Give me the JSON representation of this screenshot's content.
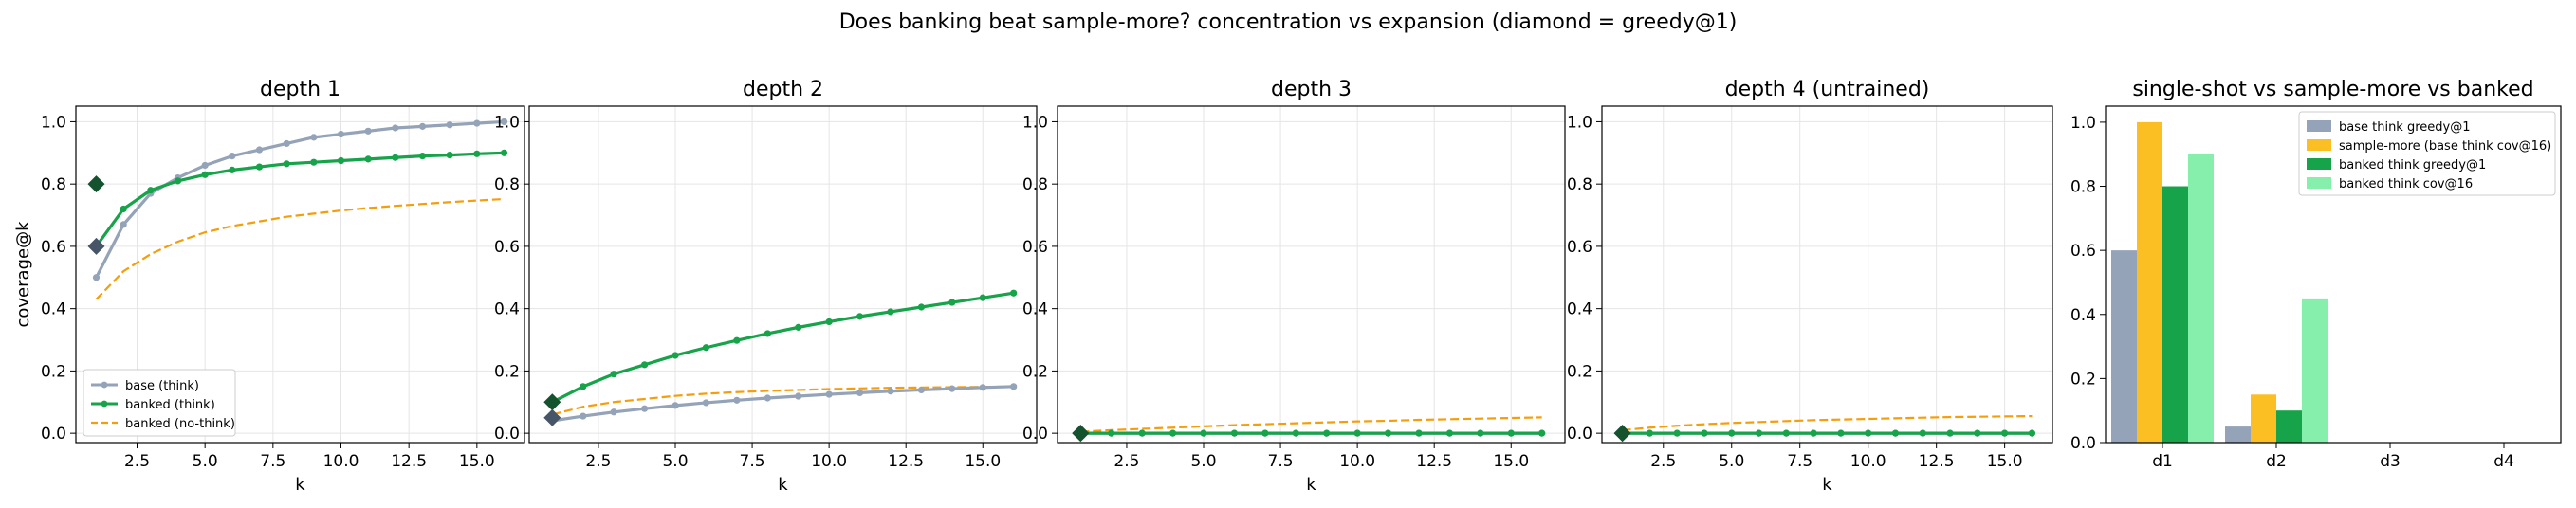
{
  "figure": {
    "suptitle": "Does banking beat sample-more? concentration vs expansion (diamond = greedy@1)"
  },
  "colors": {
    "base": "#94a3b8",
    "banked": "#16a34a",
    "nothink": "#f59e0b",
    "diamond_base": "#475569",
    "diamond_banked": "#14532d",
    "bar_base": "#94a3b8",
    "bar_sample": "#fbbf24",
    "bar_banked_g": "#16a34a",
    "bar_banked_c": "#86efac"
  },
  "chart_data": [
    {
      "type": "line",
      "title": "depth 1",
      "xlabel": "k",
      "ylabel": "coverage@k",
      "xlim": [
        0.25,
        16.75
      ],
      "ylim": [
        -0.03,
        1.05
      ],
      "xticks": [
        2.5,
        5.0,
        7.5,
        10.0,
        12.5,
        15.0
      ],
      "xtick_labels": [
        "2.5",
        "5.0",
        "7.5",
        "10.0",
        "12.5",
        "15.0"
      ],
      "yticks": [
        0.0,
        0.2,
        0.4,
        0.6,
        0.8,
        1.0
      ],
      "ytick_labels": [
        "0.0",
        "0.2",
        "0.4",
        "0.6",
        "0.8",
        "1.0"
      ],
      "grid": true,
      "legend": "lower-left",
      "x": [
        1,
        2,
        3,
        4,
        5,
        6,
        7,
        8,
        9,
        10,
        11,
        12,
        13,
        14,
        15,
        16
      ],
      "series": [
        {
          "key": "base",
          "name": "base (think)",
          "style": "solid-marker",
          "values": [
            0.5,
            0.67,
            0.77,
            0.82,
            0.86,
            0.89,
            0.91,
            0.93,
            0.95,
            0.96,
            0.97,
            0.98,
            0.985,
            0.99,
            0.995,
            1.0
          ]
        },
        {
          "key": "banked",
          "name": "banked (think)",
          "style": "solid-marker",
          "values": [
            0.6,
            0.72,
            0.78,
            0.81,
            0.83,
            0.845,
            0.855,
            0.865,
            0.87,
            0.875,
            0.88,
            0.885,
            0.89,
            0.893,
            0.897,
            0.9
          ]
        },
        {
          "key": "nothink",
          "name": "banked (no-think)",
          "style": "dashed",
          "values": [
            0.43,
            0.52,
            0.575,
            0.615,
            0.645,
            0.665,
            0.68,
            0.695,
            0.705,
            0.715,
            0.723,
            0.73,
            0.736,
            0.742,
            0.747,
            0.752
          ]
        }
      ],
      "greedy": [
        {
          "key": "diamond_base",
          "x": 1,
          "y": 0.6
        },
        {
          "key": "diamond_banked",
          "x": 1,
          "y": 0.8
        }
      ]
    },
    {
      "type": "line",
      "title": "depth 2",
      "xlabel": "k",
      "xlim": [
        0.25,
        16.75
      ],
      "ylim": [
        -0.03,
        1.05
      ],
      "xticks": [
        2.5,
        5.0,
        7.5,
        10.0,
        12.5,
        15.0
      ],
      "xtick_labels": [
        "2.5",
        "5.0",
        "7.5",
        "10.0",
        "12.5",
        "15.0"
      ],
      "yticks": [
        0.0,
        0.2,
        0.4,
        0.6,
        0.8,
        1.0
      ],
      "ytick_labels": [
        "0.0",
        "0.2",
        "0.4",
        "0.6",
        "0.8",
        "1.0"
      ],
      "grid": true,
      "x": [
        1,
        2,
        3,
        4,
        5,
        6,
        7,
        8,
        9,
        10,
        11,
        12,
        13,
        14,
        15,
        16
      ],
      "series": [
        {
          "key": "base",
          "style": "solid-marker",
          "values": [
            0.04,
            0.055,
            0.068,
            0.079,
            0.089,
            0.098,
            0.106,
            0.113,
            0.119,
            0.125,
            0.13,
            0.135,
            0.139,
            0.143,
            0.147,
            0.15
          ]
        },
        {
          "key": "banked",
          "style": "solid-marker",
          "values": [
            0.1,
            0.15,
            0.19,
            0.22,
            0.25,
            0.275,
            0.298,
            0.32,
            0.34,
            0.358,
            0.375,
            0.39,
            0.405,
            0.42,
            0.435,
            0.45
          ]
        },
        {
          "key": "nothink",
          "style": "dashed",
          "values": [
            0.06,
            0.085,
            0.1,
            0.11,
            0.12,
            0.127,
            0.132,
            0.136,
            0.139,
            0.142,
            0.144,
            0.146,
            0.147,
            0.148,
            0.149,
            0.15
          ]
        }
      ],
      "greedy": [
        {
          "key": "diamond_banked",
          "x": 1,
          "y": 0.1
        },
        {
          "key": "diamond_base",
          "x": 1,
          "y": 0.05
        }
      ]
    },
    {
      "type": "line",
      "title": "depth 3",
      "xlabel": "k",
      "xlim": [
        0.25,
        16.75
      ],
      "ylim": [
        -0.03,
        1.05
      ],
      "xticks": [
        2.5,
        5.0,
        7.5,
        10.0,
        12.5,
        15.0
      ],
      "xtick_labels": [
        "2.5",
        "5.0",
        "7.5",
        "10.0",
        "12.5",
        "15.0"
      ],
      "yticks": [
        0.0,
        0.2,
        0.4,
        0.6,
        0.8,
        1.0
      ],
      "ytick_labels": [
        "0.0",
        "0.2",
        "0.4",
        "0.6",
        "0.8",
        "1.0"
      ],
      "grid": true,
      "x": [
        1,
        2,
        3,
        4,
        5,
        6,
        7,
        8,
        9,
        10,
        11,
        12,
        13,
        14,
        15,
        16
      ],
      "series": [
        {
          "key": "base",
          "style": "solid-marker",
          "values": [
            0,
            0,
            0,
            0,
            0,
            0,
            0,
            0,
            0,
            0,
            0,
            0,
            0,
            0,
            0,
            0
          ]
        },
        {
          "key": "banked",
          "style": "solid-marker",
          "values": [
            0,
            0,
            0,
            0,
            0,
            0,
            0,
            0,
            0,
            0,
            0,
            0,
            0,
            0,
            0,
            0
          ]
        },
        {
          "key": "nothink",
          "style": "dashed",
          "values": [
            0.005,
            0.01,
            0.014,
            0.018,
            0.022,
            0.026,
            0.029,
            0.032,
            0.035,
            0.038,
            0.04,
            0.043,
            0.045,
            0.047,
            0.049,
            0.051
          ]
        }
      ],
      "greedy": [
        {
          "key": "diamond_base",
          "x": 1,
          "y": 0.0
        },
        {
          "key": "diamond_banked",
          "x": 1,
          "y": 0.0
        }
      ]
    },
    {
      "type": "line",
      "title": "depth 4 (untrained)",
      "xlabel": "k",
      "xlim": [
        0.25,
        16.75
      ],
      "ylim": [
        -0.03,
        1.05
      ],
      "xticks": [
        2.5,
        5.0,
        7.5,
        10.0,
        12.5,
        15.0
      ],
      "xtick_labels": [
        "2.5",
        "5.0",
        "7.5",
        "10.0",
        "12.5",
        "15.0"
      ],
      "yticks": [
        0.0,
        0.2,
        0.4,
        0.6,
        0.8,
        1.0
      ],
      "ytick_labels": [
        "0.0",
        "0.2",
        "0.4",
        "0.6",
        "0.8",
        "1.0"
      ],
      "grid": true,
      "x": [
        1,
        2,
        3,
        4,
        5,
        6,
        7,
        8,
        9,
        10,
        11,
        12,
        13,
        14,
        15,
        16
      ],
      "series": [
        {
          "key": "base",
          "style": "solid-marker",
          "values": [
            0,
            0,
            0,
            0,
            0,
            0,
            0,
            0,
            0,
            0,
            0,
            0,
            0,
            0,
            0,
            0
          ]
        },
        {
          "key": "banked",
          "style": "solid-marker",
          "values": [
            0,
            0,
            0,
            0,
            0,
            0,
            0,
            0,
            0,
            0,
            0,
            0,
            0,
            0,
            0,
            0
          ]
        },
        {
          "key": "nothink",
          "style": "dashed",
          "values": [
            0.01,
            0.018,
            0.024,
            0.029,
            0.033,
            0.036,
            0.039,
            0.042,
            0.044,
            0.046,
            0.048,
            0.05,
            0.052,
            0.053,
            0.054,
            0.055
          ]
        }
      ],
      "greedy": [
        {
          "key": "diamond_base",
          "x": 1,
          "y": 0.0
        },
        {
          "key": "diamond_banked",
          "x": 1,
          "y": 0.0
        }
      ]
    },
    {
      "type": "bar",
      "title": "single-shot vs sample-more vs banked",
      "categories": [
        "d1",
        "d2",
        "d3",
        "d4"
      ],
      "ylim": [
        0,
        1.05
      ],
      "yticks": [
        0.0,
        0.2,
        0.4,
        0.6,
        0.8,
        1.0
      ],
      "ytick_labels": [
        "0.0",
        "0.2",
        "0.4",
        "0.6",
        "0.8",
        "1.0"
      ],
      "legend": "top-right",
      "series": [
        {
          "key": "bar_base",
          "name": "base think greedy@1",
          "values": [
            0.6,
            0.05,
            0,
            0
          ]
        },
        {
          "key": "bar_sample",
          "name": "sample-more (base think cov@16)",
          "values": [
            1.0,
            0.15,
            0,
            0
          ]
        },
        {
          "key": "bar_banked_g",
          "name": "banked think greedy@1",
          "values": [
            0.8,
            0.1,
            0,
            0
          ]
        },
        {
          "key": "bar_banked_c",
          "name": "banked think cov@16",
          "values": [
            0.9,
            0.45,
            0,
            0
          ]
        }
      ]
    }
  ]
}
